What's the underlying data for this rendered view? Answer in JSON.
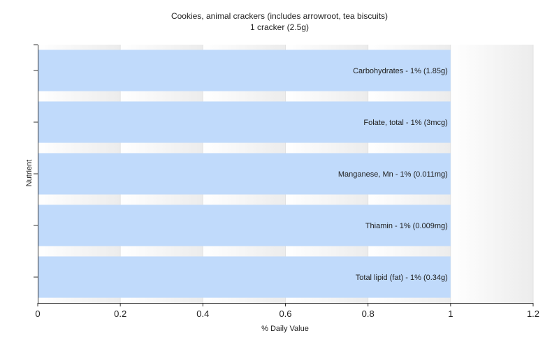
{
  "chart_data": {
    "type": "bar",
    "orientation": "horizontal",
    "title": "Cookies, animal crackers (includes arrowroot, tea biscuits)",
    "subtitle": "1 cracker (2.5g)",
    "xlabel": "% Daily Value",
    "ylabel": "Nutrient",
    "xlim": [
      0,
      1.2
    ],
    "xticks": [
      "0",
      "0.2",
      "0.4",
      "0.6",
      "0.8",
      "1",
      "1.2"
    ],
    "grid": true,
    "bar_color": "#c0dafb",
    "categories": [
      "Carbohydrates",
      "Folate, total",
      "Manganese, Mn",
      "Thiamin",
      "Total lipid (fat)"
    ],
    "values": [
      1,
      1,
      1,
      1,
      1
    ],
    "data_labels": [
      "Carbohydrates - 1% (1.85g)",
      "Folate, total - 1% (3mcg)",
      "Manganese, Mn - 1% (0.011mg)",
      "Thiamin - 1% (0.009mg)",
      "Total lipid (fat) - 1% (0.34g)"
    ]
  }
}
